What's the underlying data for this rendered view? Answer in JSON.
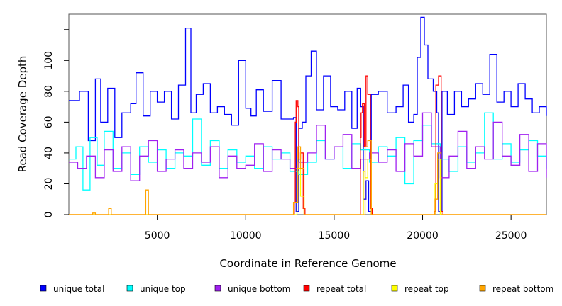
{
  "chart_data": {
    "type": "line",
    "title": "",
    "xlabel": "Coordinate in Reference Genome",
    "ylabel": "Read Coverage Depth",
    "xlim": [
      0,
      27000
    ],
    "ylim": [
      0,
      130
    ],
    "x_ticks": [
      5000,
      10000,
      15000,
      20000,
      25000
    ],
    "x_tick_labels": [
      "5000",
      "10000",
      "15000",
      "20000",
      "25000"
    ],
    "y_ticks": [
      0,
      20,
      40,
      60,
      80,
      100
    ],
    "y_tick_labels": [
      "0",
      "20",
      "40",
      "60",
      "80",
      "100"
    ],
    "y_tick_extra": [
      120
    ],
    "grid": false,
    "legend_position": "bottom",
    "series": [
      {
        "name": "unique total",
        "color": "#0000ff",
        "x": [
          0,
          600,
          1100,
          1500,
          1800,
          2200,
          2600,
          3000,
          3500,
          3800,
          4200,
          4600,
          5000,
          5400,
          5800,
          6200,
          6600,
          6900,
          7200,
          7600,
          8000,
          8400,
          8800,
          9200,
          9600,
          10000,
          10300,
          10600,
          11000,
          11500,
          12000,
          12400,
          12700,
          12850,
          13000,
          13200,
          13400,
          13700,
          14000,
          14400,
          14800,
          15200,
          15600,
          16000,
          16300,
          16500,
          16650,
          16800,
          16950,
          17100,
          17500,
          18000,
          18500,
          18900,
          19200,
          19500,
          19700,
          19900,
          20100,
          20300,
          20600,
          20800,
          20900,
          21100,
          21400,
          21800,
          22200,
          22600,
          23000,
          23400,
          23800,
          24200,
          24600,
          25000,
          25400,
          25800,
          26200,
          26600,
          27000
        ],
        "values": [
          74,
          80,
          48,
          88,
          60,
          82,
          50,
          66,
          72,
          92,
          64,
          80,
          73,
          80,
          62,
          84,
          121,
          66,
          78,
          85,
          66,
          70,
          65,
          58,
          100,
          69,
          64,
          81,
          67,
          87,
          62,
          62,
          63,
          2,
          56,
          60,
          90,
          106,
          68,
          90,
          70,
          68,
          80,
          56,
          82,
          70,
          10,
          22,
          2,
          78,
          80,
          66,
          70,
          84,
          60,
          65,
          102,
          128,
          110,
          88,
          80,
          66,
          2,
          80,
          65,
          80,
          70,
          75,
          85,
          78,
          104,
          73,
          80,
          70,
          85,
          75,
          66,
          70,
          64
        ]
      },
      {
        "name": "unique top",
        "color": "#00ffff",
        "x": [
          0,
          400,
          800,
          1200,
          1600,
          2000,
          2500,
          3000,
          3500,
          4000,
          4500,
          5000,
          5500,
          6000,
          6500,
          7000,
          7500,
          8000,
          8500,
          9000,
          9500,
          10000,
          10500,
          11000,
          11500,
          12000,
          12500,
          13000,
          13500,
          14000,
          14500,
          15000,
          15500,
          16000,
          16500,
          17000,
          17500,
          18000,
          18500,
          19000,
          19500,
          20000,
          20500,
          21000,
          21500,
          22000,
          22500,
          23000,
          23500,
          24000,
          24500,
          25000,
          25500,
          26000,
          26500,
          27000
        ],
        "values": [
          36,
          44,
          16,
          50,
          32,
          54,
          30,
          40,
          26,
          44,
          34,
          42,
          30,
          40,
          38,
          62,
          32,
          48,
          30,
          42,
          34,
          38,
          30,
          44,
          36,
          40,
          28,
          26,
          34,
          48,
          36,
          44,
          30,
          46,
          42,
          34,
          44,
          38,
          50,
          20,
          48,
          58,
          46,
          36,
          28,
          44,
          34,
          40,
          66,
          36,
          46,
          34,
          42,
          48,
          38,
          30
        ]
      },
      {
        "name": "unique bottom",
        "color": "#a020f0",
        "x": [
          0,
          500,
          1000,
          1500,
          2000,
          2500,
          3000,
          3500,
          4000,
          4500,
          5000,
          5500,
          6000,
          6500,
          7000,
          7500,
          8000,
          8500,
          9000,
          9500,
          10000,
          10500,
          11000,
          11500,
          12000,
          12500,
          13000,
          13500,
          14000,
          14500,
          15000,
          15500,
          16000,
          16500,
          17000,
          17500,
          18000,
          18500,
          19000,
          19500,
          20000,
          20500,
          21000,
          21500,
          22000,
          22500,
          23000,
          23500,
          24000,
          24500,
          25000,
          25500,
          26000,
          26500,
          27000
        ],
        "values": [
          34,
          30,
          38,
          24,
          42,
          28,
          44,
          22,
          38,
          48,
          28,
          36,
          42,
          30,
          40,
          34,
          44,
          24,
          38,
          30,
          32,
          46,
          28,
          42,
          36,
          30,
          34,
          40,
          58,
          36,
          44,
          52,
          30,
          36,
          40,
          34,
          42,
          28,
          46,
          38,
          66,
          44,
          24,
          38,
          54,
          30,
          44,
          36,
          60,
          38,
          32,
          52,
          28,
          46,
          24
        ]
      },
      {
        "name": "repeat total",
        "color": "#ff0000",
        "x": [
          0,
          12600,
          12750,
          12800,
          12850,
          12950,
          13000,
          13100,
          13250,
          13350,
          16400,
          16480,
          16520,
          16600,
          16700,
          16800,
          16900,
          17050,
          17150,
          20450,
          20650,
          20750,
          20900,
          21050,
          21150,
          27000
        ],
        "values": [
          0,
          0,
          8,
          60,
          74,
          70,
          36,
          40,
          4,
          0,
          0,
          50,
          66,
          72,
          44,
          90,
          78,
          4,
          0,
          0,
          2,
          84,
          90,
          2,
          0,
          0
        ]
      },
      {
        "name": "repeat top",
        "color": "#ffff00",
        "x": [
          0,
          12700,
          12900,
          13100,
          13300,
          16500,
          16650,
          16750,
          16900,
          17100,
          20500,
          20700,
          20850,
          21000,
          27000
        ],
        "values": [
          0,
          0,
          30,
          12,
          0,
          0,
          28,
          24,
          36,
          0,
          0,
          20,
          36,
          0,
          0
        ]
      },
      {
        "name": "repeat bottom",
        "color": "#ffa500",
        "x": [
          0,
          1300,
          1350,
          1450,
          1500,
          2200,
          2250,
          2350,
          2400,
          4300,
          4350,
          4450,
          4500,
          12600,
          12700,
          12950,
          13100,
          13300,
          16500,
          16750,
          16900,
          17100,
          20400,
          20700,
          20850,
          21050,
          27000
        ],
        "values": [
          0,
          0,
          1,
          1,
          0,
          0,
          4,
          4,
          0,
          0,
          16,
          16,
          0,
          0,
          8,
          44,
          30,
          0,
          0,
          44,
          48,
          0,
          0,
          10,
          40,
          0,
          0
        ]
      }
    ]
  },
  "legend": {
    "items": [
      {
        "label": "unique total",
        "color": "#0000ff"
      },
      {
        "label": "unique top",
        "color": "#00ffff"
      },
      {
        "label": "unique bottom",
        "color": "#a020f0"
      },
      {
        "label": "repeat total",
        "color": "#ff0000"
      },
      {
        "label": "repeat top",
        "color": "#ffff00"
      },
      {
        "label": "repeat bottom",
        "color": "#ffa500"
      }
    ]
  }
}
